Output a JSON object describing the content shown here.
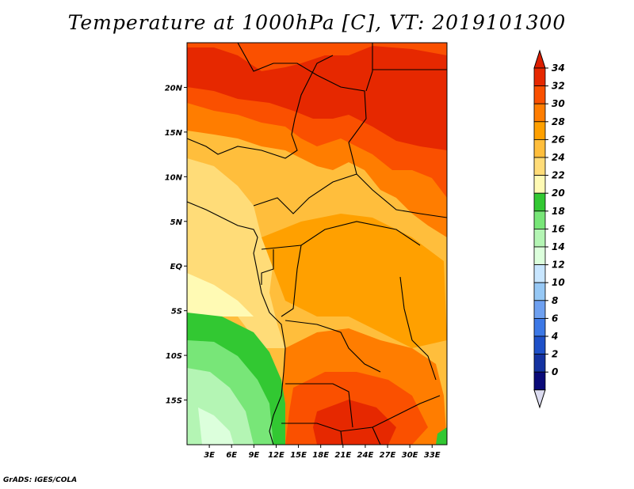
{
  "title": "Temperature at 1000hPa [C], VT: 2019101300",
  "credit": "GrADS: IGES/COLA",
  "map": {
    "lon_range": [
      0,
      35
    ],
    "lat_range": [
      -20,
      25
    ],
    "lon_ticks": [
      {
        "value": 3,
        "label": "3E"
      },
      {
        "value": 6,
        "label": "6E"
      },
      {
        "value": 9,
        "label": "9E"
      },
      {
        "value": 12,
        "label": "12E"
      },
      {
        "value": 15,
        "label": "15E"
      },
      {
        "value": 18,
        "label": "18E"
      },
      {
        "value": 21,
        "label": "21E"
      },
      {
        "value": 24,
        "label": "24E"
      },
      {
        "value": 27,
        "label": "27E"
      },
      {
        "value": 30,
        "label": "30E"
      },
      {
        "value": 33,
        "label": "33E"
      }
    ],
    "lat_ticks": [
      {
        "value": 20,
        "label": "20N"
      },
      {
        "value": 15,
        "label": "15N"
      },
      {
        "value": 10,
        "label": "10N"
      },
      {
        "value": 5,
        "label": "5N"
      },
      {
        "value": 0,
        "label": "EQ"
      },
      {
        "value": -5,
        "label": "5S"
      },
      {
        "value": -10,
        "label": "10S"
      },
      {
        "value": -15,
        "label": "15S"
      }
    ]
  },
  "colorbar": {
    "labels": [
      "34",
      "32",
      "30",
      "28",
      "26",
      "24",
      "22",
      "20",
      "18",
      "16",
      "14",
      "12",
      "10",
      "8",
      "6",
      "4",
      "2",
      "0"
    ],
    "colors": [
      "#e62800",
      "#fa5000",
      "#ff7d00",
      "#ffa000",
      "#ffbe3c",
      "#ffdc78",
      "#fffab4",
      "#32c832",
      "#78e678",
      "#b4f5b4",
      "#dcffdc",
      "#c8e6ff",
      "#96c8f5",
      "#6ea0f0",
      "#3c78e6",
      "#1e50c8",
      "#1432a0",
      "#0a0a78"
    ],
    "top_arrow_color": "#dc1e00",
    "bottom_arrow_color": "#dcdcf0"
  }
}
